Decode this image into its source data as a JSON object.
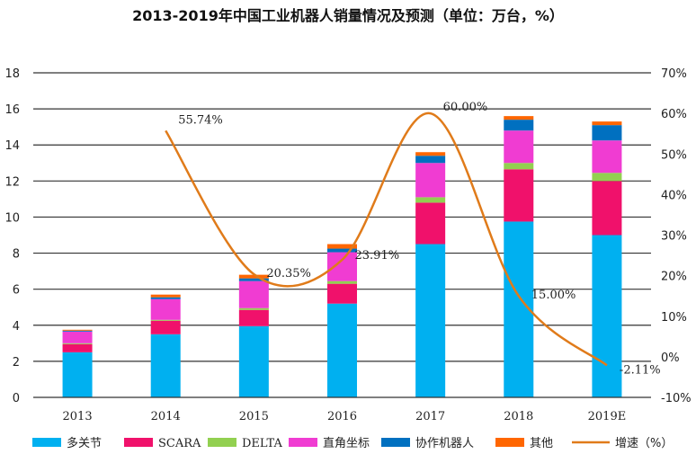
{
  "chart_data": {
    "type": "bar",
    "stacked": true,
    "title": "2013-2019年中国工业机器人销量情况及预测（单位：万台，%）",
    "categories": [
      "2013",
      "2014",
      "2015",
      "2016",
      "2017",
      "2018",
      "2019E"
    ],
    "ylim": [
      0,
      18
    ],
    "y_ticks": [
      "0",
      "2",
      "4",
      "6",
      "8",
      "10",
      "12",
      "14",
      "16",
      "18"
    ],
    "y2lim": [
      -10,
      70
    ],
    "y2_ticks": [
      "-10%",
      "0%",
      "10%",
      "20%",
      "30%",
      "40%",
      "50%",
      "60%",
      "70%"
    ],
    "grid": true,
    "legend_position": "bottom",
    "series": [
      {
        "name": "多关节",
        "color": "#00B0F0",
        "values": [
          2.5,
          3.5,
          3.95,
          5.2,
          8.5,
          9.75,
          9.0
        ]
      },
      {
        "name": "SCARA",
        "color": "#F0116B",
        "values": [
          0.45,
          0.75,
          0.9,
          1.1,
          2.3,
          2.9,
          3.0
        ]
      },
      {
        "name": "DELTA",
        "color": "#92D050",
        "values": [
          0.05,
          0.05,
          0.1,
          0.15,
          0.3,
          0.35,
          0.45
        ]
      },
      {
        "name": "直角坐标",
        "color": "#F03CD2",
        "values": [
          0.65,
          1.15,
          1.5,
          1.6,
          1.9,
          1.8,
          1.8
        ]
      },
      {
        "name": "协作机器人",
        "color": "#0070C0",
        "values": [
          0.05,
          0.1,
          0.15,
          0.2,
          0.4,
          0.6,
          0.85
        ]
      },
      {
        "name": "其他",
        "color": "#FF6600",
        "values": [
          0.05,
          0.15,
          0.2,
          0.25,
          0.2,
          0.2,
          0.2
        ]
      }
    ],
    "line_series": {
      "name": "增速（%）",
      "color": "#E07B1A",
      "axis": "right",
      "x": [
        "2014",
        "2015",
        "2016",
        "2017",
        "2018",
        "2019E"
      ],
      "values": [
        55.74,
        20.35,
        23.91,
        60.0,
        15.0,
        -2.11
      ],
      "labels": [
        "55.74%",
        "20.35%",
        "23.91%",
        "60.00%",
        "15.00%",
        "-2.11%"
      ]
    }
  }
}
